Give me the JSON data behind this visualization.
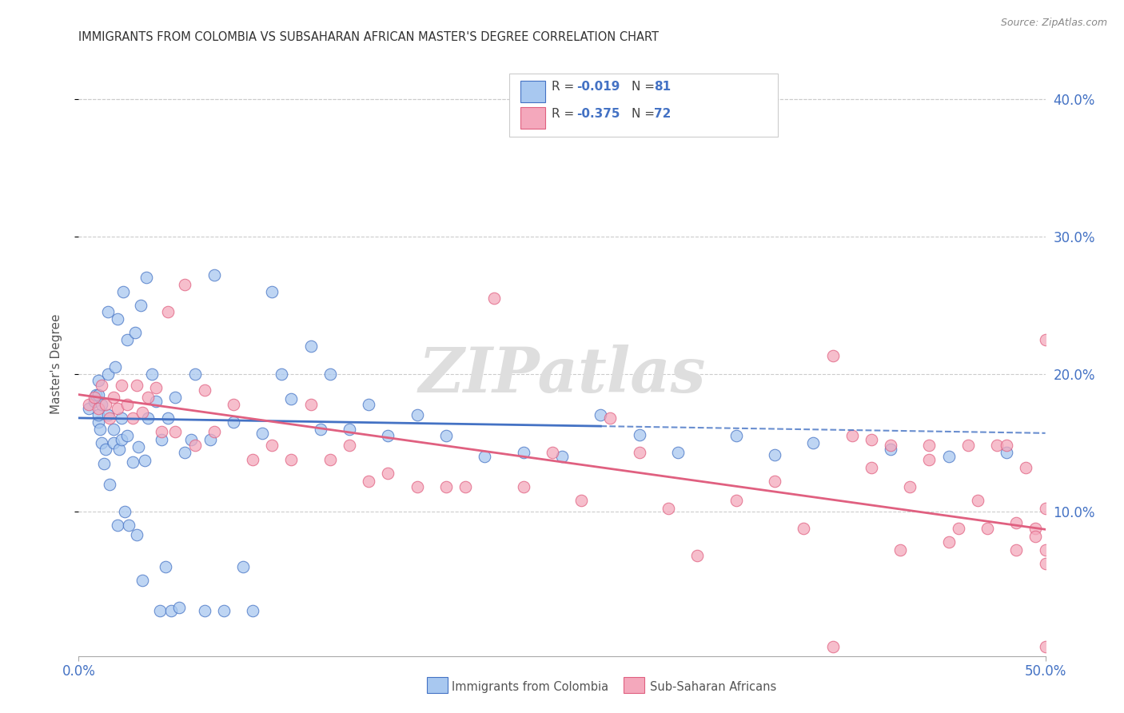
{
  "title": "IMMIGRANTS FROM COLOMBIA VS SUBSAHARAN AFRICAN MASTER'S DEGREE CORRELATION CHART",
  "source": "Source: ZipAtlas.com",
  "ylabel": "Master's Degree",
  "color_blue": "#a8c8f0",
  "color_pink": "#f4a8bc",
  "color_blue_line": "#4472c4",
  "color_pink_line": "#e06080",
  "color_axis": "#4472c4",
  "watermark": "ZIPatlas",
  "colombia_x": [
    0.005,
    0.008,
    0.009,
    0.01,
    0.01,
    0.01,
    0.01,
    0.011,
    0.012,
    0.012,
    0.013,
    0.014,
    0.015,
    0.015,
    0.015,
    0.016,
    0.018,
    0.018,
    0.019,
    0.02,
    0.02,
    0.021,
    0.022,
    0.022,
    0.023,
    0.024,
    0.025,
    0.025,
    0.026,
    0.028,
    0.029,
    0.03,
    0.031,
    0.032,
    0.033,
    0.034,
    0.035,
    0.036,
    0.038,
    0.04,
    0.042,
    0.043,
    0.045,
    0.046,
    0.048,
    0.05,
    0.052,
    0.055,
    0.058,
    0.06,
    0.065,
    0.068,
    0.07,
    0.075,
    0.08,
    0.085,
    0.09,
    0.095,
    0.1,
    0.105,
    0.11,
    0.12,
    0.125,
    0.13,
    0.14,
    0.15,
    0.16,
    0.175,
    0.19,
    0.21,
    0.23,
    0.25,
    0.27,
    0.29,
    0.31,
    0.34,
    0.36,
    0.38,
    0.42,
    0.45,
    0.48
  ],
  "colombia_y": [
    0.175,
    0.18,
    0.185,
    0.165,
    0.17,
    0.185,
    0.195,
    0.16,
    0.178,
    0.15,
    0.135,
    0.145,
    0.17,
    0.2,
    0.245,
    0.12,
    0.15,
    0.16,
    0.205,
    0.24,
    0.09,
    0.145,
    0.152,
    0.168,
    0.26,
    0.1,
    0.155,
    0.225,
    0.09,
    0.136,
    0.23,
    0.083,
    0.147,
    0.25,
    0.05,
    0.137,
    0.27,
    0.168,
    0.2,
    0.18,
    0.028,
    0.152,
    0.06,
    0.168,
    0.028,
    0.183,
    0.03,
    0.143,
    0.152,
    0.2,
    0.028,
    0.152,
    0.272,
    0.028,
    0.165,
    0.06,
    0.028,
    0.157,
    0.26,
    0.2,
    0.182,
    0.22,
    0.16,
    0.2,
    0.16,
    0.178,
    0.155,
    0.17,
    0.155,
    0.14,
    0.143,
    0.14,
    0.17,
    0.156,
    0.143,
    0.155,
    0.141,
    0.15,
    0.145,
    0.14,
    0.143
  ],
  "africa_x": [
    0.005,
    0.008,
    0.01,
    0.012,
    0.014,
    0.016,
    0.018,
    0.02,
    0.022,
    0.025,
    0.028,
    0.03,
    0.033,
    0.036,
    0.04,
    0.043,
    0.046,
    0.05,
    0.055,
    0.06,
    0.065,
    0.07,
    0.08,
    0.09,
    0.1,
    0.11,
    0.12,
    0.13,
    0.14,
    0.15,
    0.16,
    0.175,
    0.19,
    0.2,
    0.215,
    0.23,
    0.245,
    0.26,
    0.275,
    0.29,
    0.305,
    0.32,
    0.34,
    0.36,
    0.375,
    0.39,
    0.41,
    0.425,
    0.44,
    0.455,
    0.465,
    0.475,
    0.485,
    0.495,
    0.5,
    0.5,
    0.5,
    0.5,
    0.5,
    0.495,
    0.49,
    0.485,
    0.48,
    0.47,
    0.46,
    0.45,
    0.44,
    0.43,
    0.42,
    0.41,
    0.4,
    0.39
  ],
  "africa_y": [
    0.178,
    0.183,
    0.175,
    0.192,
    0.178,
    0.168,
    0.183,
    0.175,
    0.192,
    0.178,
    0.168,
    0.192,
    0.172,
    0.183,
    0.19,
    0.158,
    0.245,
    0.158,
    0.265,
    0.148,
    0.188,
    0.158,
    0.178,
    0.138,
    0.148,
    0.138,
    0.178,
    0.138,
    0.148,
    0.122,
    0.128,
    0.118,
    0.118,
    0.118,
    0.255,
    0.118,
    0.143,
    0.108,
    0.168,
    0.143,
    0.102,
    0.068,
    0.108,
    0.122,
    0.088,
    0.213,
    0.132,
    0.072,
    0.148,
    0.088,
    0.108,
    0.148,
    0.072,
    0.088,
    0.102,
    0.002,
    0.062,
    0.225,
    0.072,
    0.082,
    0.132,
    0.092,
    0.148,
    0.088,
    0.148,
    0.078,
    0.138,
    0.118,
    0.148,
    0.152,
    0.155,
    0.002
  ],
  "xlim": [
    0.0,
    0.5
  ],
  "ylim": [
    -0.005,
    0.42
  ],
  "colombia_trend": [
    0.168,
    0.157
  ],
  "africa_trend": [
    0.185,
    0.087
  ],
  "colombia_dash_trend": [
    0.163,
    0.157
  ],
  "xtick_labels": [
    "0.0%",
    "50.0%"
  ],
  "xtick_vals": [
    0.0,
    0.5
  ],
  "ytick_vals": [
    0.1,
    0.2,
    0.3,
    0.4
  ],
  "ytick_labels": [
    "10.0%",
    "20.0%",
    "30.0%",
    "40.0%"
  ]
}
